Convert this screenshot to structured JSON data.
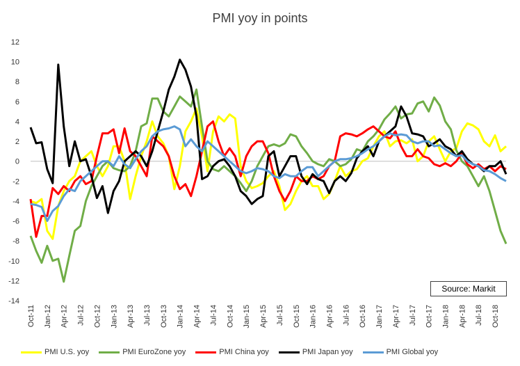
{
  "chart_data": {
    "type": "line",
    "title": "PMI yoy in points",
    "source": "Source: Markit",
    "ylim": [
      -14,
      12
    ],
    "yticks": [
      12,
      10,
      8,
      6,
      4,
      2,
      0,
      -2,
      -4,
      -6,
      -8,
      -10,
      -12,
      -14
    ],
    "xticks": [
      "Oct-11",
      "Jan-12",
      "Apr-12",
      "Jul-12",
      "Oct-12",
      "Jan-13",
      "Apr-13",
      "Jul-13",
      "Oct-13",
      "Jan-14",
      "Apr-14",
      "Jul-14",
      "Oct-14",
      "Jan-15",
      "Apr-15",
      "Jul-15",
      "Oct-15",
      "Jan-16",
      "Apr-16",
      "Jul-16",
      "Oct-16",
      "Jan-17",
      "Apr-17",
      "Jul-17",
      "Oct-17",
      "Jan-18",
      "Apr-18",
      "Jul-18",
      "Oct-18"
    ],
    "grid": false,
    "legend": "bottom",
    "series": [
      {
        "name": "PMI U.S. yoy",
        "color": "#ffff00",
        "values": [
          -4,
          -4.2,
          -3.8,
          -7,
          -7.8,
          -4.5,
          -3,
          -2,
          -1.5,
          0,
          0.5,
          1,
          -0.5,
          -1.5,
          -0.5,
          1.5,
          1.5,
          0,
          -3.8,
          -1.5,
          0.5,
          2,
          4,
          2.5,
          1.8,
          0.5,
          -2.8,
          -0.5,
          3,
          4,
          5.3,
          2.5,
          -1,
          3,
          4.5,
          4,
          4.7,
          4.3,
          -0.5,
          -2,
          -2.7,
          -2.5,
          -2.2,
          -1.5,
          -1,
          -2.5,
          -4.9,
          -4.3,
          -3,
          -2,
          -1.5,
          -2.5,
          -2.5,
          -3.8,
          -3.3,
          -2,
          -0.5,
          -1.5,
          -1,
          -0.8,
          0,
          0.3,
          1.5,
          2.5,
          3,
          1.5,
          2,
          2.1,
          1.8,
          2.2,
          0,
          0.5,
          2,
          2.5,
          1.2,
          0,
          1,
          1.3,
          3,
          3.8,
          3.6,
          3.2,
          2,
          1.5,
          2.6,
          1,
          1.5
        ]
      },
      {
        "name": "PMI EuroZone yoy",
        "color": "#70ad47",
        "values": [
          -7.5,
          -9,
          -10.2,
          -8.5,
          -10,
          -9.8,
          -12.1,
          -9.5,
          -7,
          -6.5,
          -4,
          -2.5,
          -1.5,
          -0.5,
          0,
          -0.7,
          -0.9,
          -1,
          -0.5,
          1,
          3.5,
          3.8,
          6.3,
          6.3,
          5,
          4.5,
          5.5,
          6.5,
          6,
          5.5,
          7.2,
          3.5,
          0,
          -0.8,
          -1,
          -0.5,
          -1,
          -1.5,
          -2.2,
          -3,
          -2,
          -0.5,
          0.5,
          1.5,
          1.7,
          1.5,
          1.8,
          2.7,
          2.5,
          1.5,
          0.8,
          0,
          -0.3,
          -0.5,
          0.2,
          0,
          -0.5,
          -0.3,
          0.2,
          1.2,
          1,
          2,
          2.5,
          3.2,
          4.2,
          4.8,
          5.5,
          4.3,
          4.7,
          4.8,
          5.8,
          6,
          5,
          6.4,
          5.6,
          4,
          3.2,
          1.1,
          0,
          -0.5,
          -1.5,
          -2.5,
          -1.5,
          -3,
          -5,
          -7,
          -8.3
        ]
      },
      {
        "name": "PMI China yoy",
        "color": "#ff0000",
        "values": [
          -3.8,
          -7.6,
          -5.5,
          -5.5,
          -2.7,
          -3.3,
          -2.5,
          -3,
          -2,
          -1.5,
          -2.3,
          -2,
          0.5,
          2.8,
          2.8,
          3.2,
          0.8,
          3.3,
          1,
          0.5,
          -0.5,
          -1.5,
          2.5,
          2,
          1.5,
          0.5,
          -1.5,
          -2.8,
          -2.3,
          -3.5,
          -1.5,
          1,
          3.5,
          4,
          2,
          0.5,
          1.3,
          0.5,
          -1.5,
          0.5,
          1.5,
          2,
          2,
          0.8,
          -1.5,
          -3,
          -4,
          -3,
          -1.5,
          -2,
          -2,
          -1.5,
          -1.8,
          -1.5,
          -0.5,
          0,
          2.5,
          2.8,
          2.7,
          2.5,
          2.8,
          3.2,
          3.5,
          3,
          2.5,
          2.3,
          3,
          1.5,
          0.5,
          0.5,
          1.2,
          0.5,
          0.3,
          -0.3,
          -0.5,
          -0.2,
          -0.5,
          0,
          0.8,
          -0.3,
          -0.7,
          -0.3,
          -0.8,
          -0.5,
          -1,
          -0.5,
          -0.8
        ]
      },
      {
        "name": "PMI Japan yoy",
        "color": "#000000",
        "values": [
          3.4,
          1.8,
          1.9,
          -0.8,
          -2.2,
          9.7,
          3.5,
          -0.5,
          2,
          0,
          0.2,
          -1.5,
          -3.7,
          -2.5,
          -5.2,
          -3,
          -2,
          0,
          0.5,
          1,
          0.5,
          -0.5,
          1,
          3,
          5,
          7.2,
          8.5,
          10.2,
          9.2,
          7.5,
          4.5,
          -1.8,
          -1.5,
          -0.5,
          0,
          0.2,
          -0.5,
          -1.5,
          -3,
          -3.5,
          -4.3,
          -3.8,
          -3.5,
          0.5,
          1,
          -1.5,
          -0.5,
          0.5,
          0.5,
          -1.5,
          -2.3,
          -1.3,
          -1.8,
          -2,
          -3.2,
          -2,
          -1.5,
          -2,
          -1.2,
          0.3,
          1,
          1.5,
          0.5,
          2,
          2.5,
          3,
          3.5,
          5.5,
          4.5,
          2.8,
          2.7,
          2.5,
          1.5,
          1.8,
          2.2,
          1.5,
          1.2,
          0.5,
          1,
          0.2,
          -0.3,
          -0.5,
          -1,
          -0.5,
          -0.5,
          0,
          -1.3
        ]
      },
      {
        "name": "PMI Global yoy",
        "color": "#5b9bd5",
        "values": [
          -4.3,
          -4.4,
          -4.6,
          -6,
          -5,
          -4.5,
          -3.5,
          -2.8,
          -3,
          -2,
          -1.5,
          -1,
          -0.5,
          0,
          0,
          -0.5,
          0.5,
          -0.3,
          -0.7,
          0.2,
          1,
          1.5,
          2.5,
          3,
          3.2,
          3.3,
          3.5,
          3.2,
          1.5,
          2.2,
          1.5,
          1,
          2,
          1.5,
          1,
          0.5,
          0,
          -0.5,
          -1,
          -1.2,
          -1,
          -0.7,
          -0.8,
          -1,
          -1.5,
          -1.7,
          -1.3,
          -1.5,
          -1.5,
          -1,
          -0.6,
          -0.6,
          -1.5,
          -1,
          -0.5,
          0,
          0.2,
          0.2,
          0.3,
          0.5,
          0.8,
          1.2,
          1.5,
          2,
          2.5,
          2.8,
          2.6,
          2.7,
          2.6,
          2,
          1.8,
          2,
          2,
          1.5,
          1.6,
          1.2,
          0.8,
          0.5,
          0.6,
          0,
          -0.3,
          -0.5,
          -0.9,
          -1,
          -1.3,
          -1.7,
          -2
        ]
      }
    ]
  }
}
